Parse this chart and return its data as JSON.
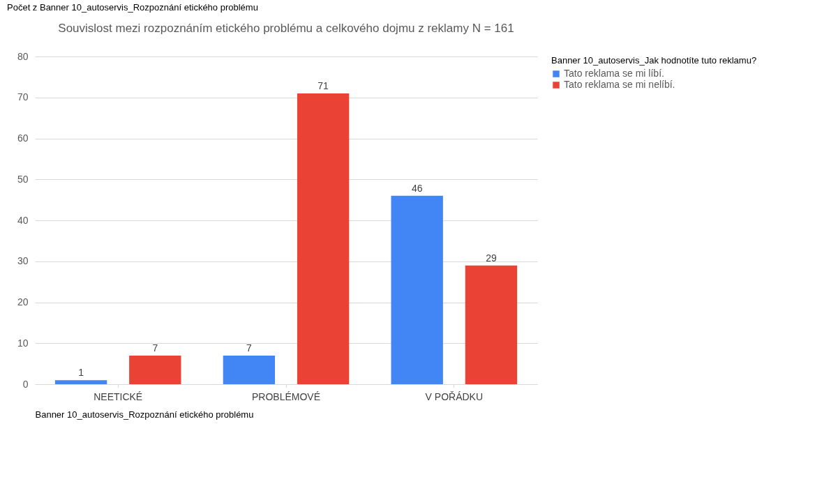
{
  "chart_data": {
    "type": "bar",
    "title": "Souvislost mezi rozpoznáním etického problému a celkového dojmu z reklamy N = 161",
    "xlabel": "Banner 10_autoservis_Rozpoznání etického problému",
    "legend_title": "Banner 10_autoservis_Jak hodnotíte tuto reklamu?",
    "annotations": [
      "Počet z Banner 10_autoservis_Rozpoznání etického problému"
    ],
    "categories": [
      "NEETICKÉ",
      "PROBLÉMOVÉ",
      "V POŘÁDKU"
    ],
    "series": [
      {
        "name": "Tato reklama se mi líbí.",
        "color": "#4285f4",
        "values": [
          1,
          7,
          46
        ]
      },
      {
        "name": "Tato reklama se mi nelíbí.",
        "color": "#ea4335",
        "values": [
          7,
          71,
          29
        ]
      }
    ],
    "ylim": [
      0,
      80
    ],
    "yticks": [
      0,
      10,
      20,
      30,
      40,
      50,
      60,
      70,
      80
    ],
    "grid": "y",
    "legend": "right",
    "data_labels": true
  }
}
